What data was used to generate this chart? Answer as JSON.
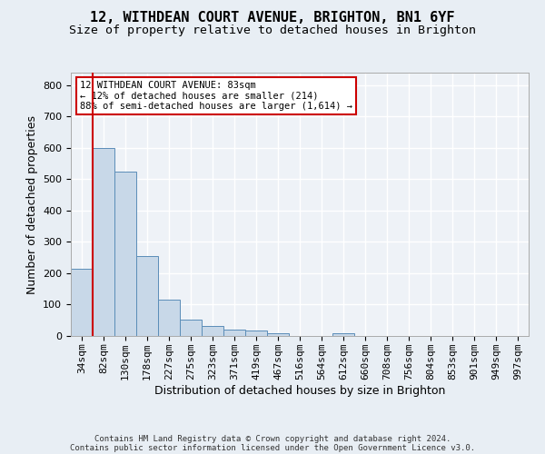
{
  "title_line1": "12, WITHDEAN COURT AVENUE, BRIGHTON, BN1 6YF",
  "title_line2": "Size of property relative to detached houses in Brighton",
  "xlabel": "Distribution of detached houses by size in Brighton",
  "ylabel": "Number of detached properties",
  "footer_line1": "Contains HM Land Registry data © Crown copyright and database right 2024.",
  "footer_line2": "Contains public sector information licensed under the Open Government Licence v3.0.",
  "bin_labels": [
    "34sqm",
    "82sqm",
    "130sqm",
    "178sqm",
    "227sqm",
    "275sqm",
    "323sqm",
    "371sqm",
    "419sqm",
    "467sqm",
    "516sqm",
    "564sqm",
    "612sqm",
    "660sqm",
    "708sqm",
    "756sqm",
    "804sqm",
    "853sqm",
    "901sqm",
    "949sqm",
    "997sqm"
  ],
  "bar_values": [
    215,
    600,
    525,
    255,
    115,
    53,
    32,
    20,
    16,
    10,
    0,
    0,
    10,
    0,
    0,
    0,
    0,
    0,
    0,
    0,
    0
  ],
  "bar_color": "#c8d8e8",
  "bar_edge_color": "#5b8db8",
  "highlight_bar_index": 1,
  "highlight_line_color": "#cc0000",
  "annotation_text": "12 WITHDEAN COURT AVENUE: 83sqm\n← 12% of detached houses are smaller (214)\n88% of semi-detached houses are larger (1,614) →",
  "annotation_box_color": "#ffffff",
  "annotation_box_edge_color": "#cc0000",
  "ylim": [
    0,
    840
  ],
  "yticks": [
    0,
    100,
    200,
    300,
    400,
    500,
    600,
    700,
    800
  ],
  "bg_color": "#e8eef4",
  "plot_bg_color": "#eef2f7",
  "grid_color": "#ffffff",
  "title_fontsize": 11,
  "subtitle_fontsize": 9.5,
  "axis_label_fontsize": 9,
  "tick_fontsize": 8,
  "annotation_fontsize": 7.5,
  "footer_fontsize": 6.5
}
